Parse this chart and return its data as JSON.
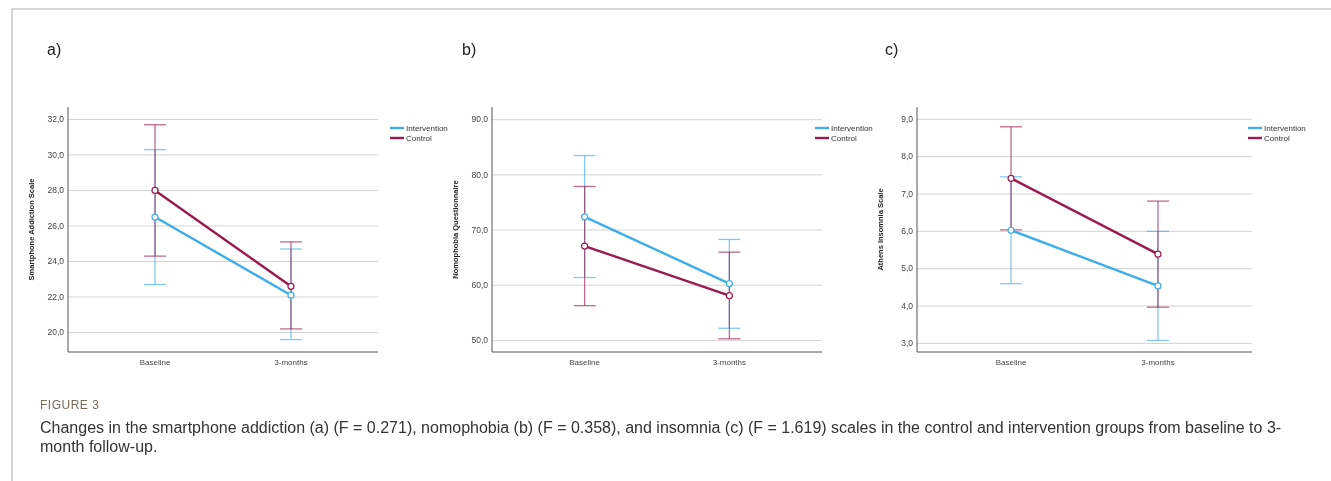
{
  "chart_data": [
    {
      "type": "line",
      "title": "a)",
      "ylabel": "Smartphone Addiction Scale",
      "categories": [
        "Baseline",
        "3-months"
      ],
      "ylim": [
        18.9,
        32.7
      ],
      "yticks": [
        {
          "value": 20,
          "label": "20,0"
        },
        {
          "value": 22,
          "label": "22,0"
        },
        {
          "value": 24,
          "label": "24,0"
        },
        {
          "value": 26,
          "label": "26,0"
        },
        {
          "value": 28,
          "label": "28,0"
        },
        {
          "value": 30,
          "label": "30,0"
        },
        {
          "value": 32,
          "label": "32,0"
        }
      ],
      "grid": "y",
      "legend": "right",
      "marker": "circle",
      "series": [
        {
          "name": "Intervention",
          "color": "#3daee9",
          "values": [
            26.5,
            22.1
          ],
          "errors": [
            [
              22.7,
              30.3
            ],
            [
              19.6,
              24.7
            ]
          ]
        },
        {
          "name": "Control",
          "color": "#9b1b4f",
          "values": [
            28.0,
            22.6
          ],
          "errors": [
            [
              24.3,
              31.7
            ],
            [
              20.2,
              25.1
            ]
          ]
        }
      ],
      "annotations": [
        "FIGURE 3",
        "Changes in the smartphone addiction (a) (F = 0.271), nomophobia (b) (F = 0.358), and insomnia (c) (F = 1.619) scales in the control and intervention groups from baseline to 3-month follow-up."
      ]
    },
    {
      "type": "line",
      "title": "b)",
      "ylabel": "Nomophobia Questionnaire",
      "categories": [
        "Baseline",
        "3-months"
      ],
      "ylim": [
        47.9,
        92.3
      ],
      "yticks": [
        {
          "value": 50,
          "label": "50,0"
        },
        {
          "value": 60,
          "label": "60,0"
        },
        {
          "value": 70,
          "label": "70,0"
        },
        {
          "value": 80,
          "label": "80,0"
        },
        {
          "value": 90,
          "label": "90,0"
        }
      ],
      "grid": "y",
      "legend": "right",
      "marker": "circle",
      "series": [
        {
          "name": "Intervention",
          "color": "#3daee9",
          "values": [
            72.4,
            60.3
          ],
          "errors": [
            [
              61.4,
              83.5
            ],
            [
              52.2,
              68.3
            ]
          ]
        },
        {
          "name": "Control",
          "color": "#9b1b4f",
          "values": [
            67.1,
            58.1
          ],
          "errors": [
            [
              56.3,
              77.9
            ],
            [
              50.3,
              66.0
            ]
          ]
        }
      ]
    },
    {
      "type": "line",
      "title": "c)",
      "ylabel": "Athens Insomnia Scale",
      "categories": [
        "Baseline",
        "3-months"
      ],
      "ylim": [
        2.77,
        9.33
      ],
      "yticks": [
        {
          "value": 3,
          "label": "3,0"
        },
        {
          "value": 4,
          "label": "4,0"
        },
        {
          "value": 5,
          "label": "5,0"
        },
        {
          "value": 6,
          "label": "6,0"
        },
        {
          "value": 7,
          "label": "7,0"
        },
        {
          "value": 8,
          "label": "8,0"
        },
        {
          "value": 9,
          "label": "9,0"
        }
      ],
      "grid": "y",
      "legend": "right",
      "marker": "circle",
      "series": [
        {
          "name": "Intervention",
          "color": "#3daee9",
          "values": [
            6.03,
            4.54
          ],
          "errors": [
            [
              4.6,
              7.46
            ],
            [
              3.08,
              6.0
            ]
          ]
        },
        {
          "name": "Control",
          "color": "#9b1b4f",
          "values": [
            7.42,
            5.39
          ],
          "errors": [
            [
              6.04,
              8.8
            ],
            [
              3.97,
              6.81
            ]
          ]
        }
      ]
    }
  ]
}
